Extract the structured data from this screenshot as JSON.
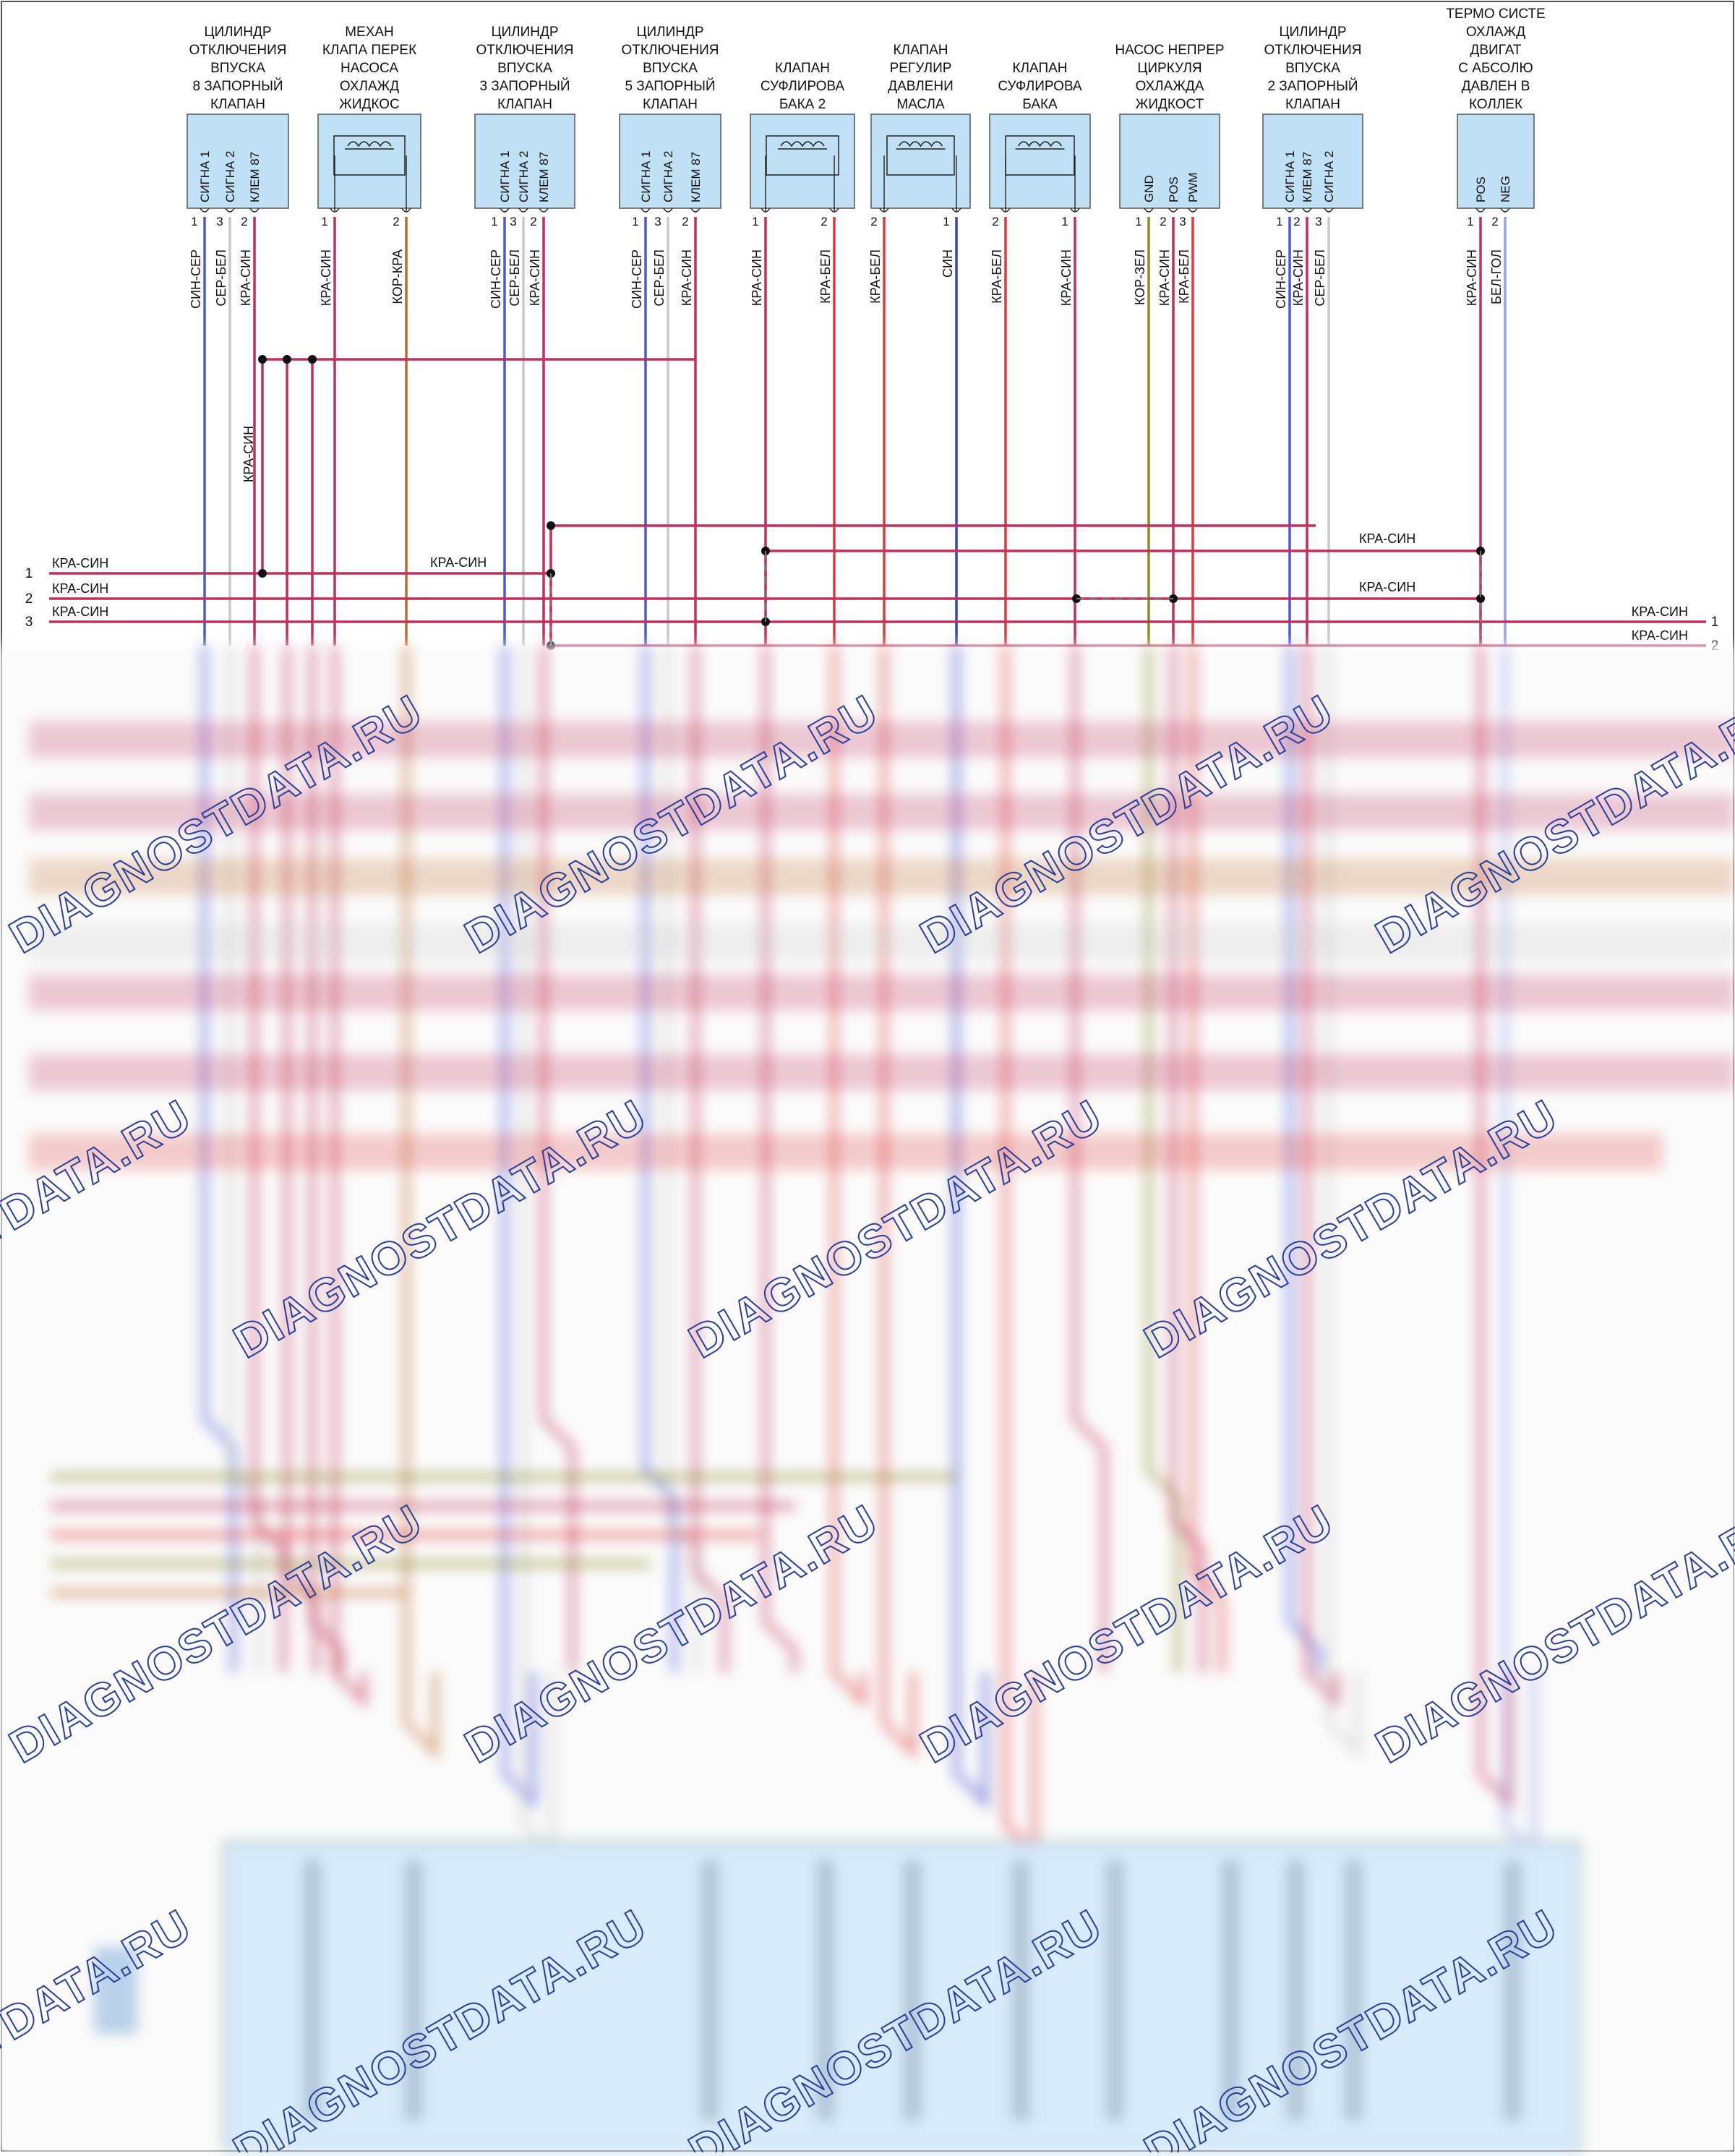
{
  "colors": {
    "red_blue": "#c0305a",
    "blue_grey": "#4a58d8",
    "grey_white": "#c8c8c8",
    "brown_red": "#c06a2a",
    "red_white": "#e03a3a",
    "blue": "#3a44c8",
    "brown_green": "#8a8a2a",
    "white_cyan": "#9aa0e6",
    "connector_fill": "#bfe0f5",
    "watermark": "#2a3e99",
    "module_fill": "#d6ebfb"
  },
  "components": [
    {
      "id": "c1",
      "title": [
        "ЦИЛИНДР",
        "ОТКЛЮЧЕНИЯ",
        "ВПУСКА",
        "8 ЗАПОРНЫЙ",
        "КЛАПАН"
      ],
      "type": "signal",
      "pins": [
        {
          "num": "1",
          "name": "СИГНА 1"
        },
        {
          "num": "3",
          "name": "СИГНА 2"
        },
        {
          "num": "2",
          "name": "КЛЕМ 87"
        }
      ]
    },
    {
      "id": "c2",
      "title": [
        "МЕХАН",
        "КЛАПА ПЕРЕК",
        "НАСОСА",
        "ОХЛАЖД",
        "ЖИДКОС"
      ],
      "type": "coil",
      "pins": [
        {
          "num": "1",
          "name": ""
        },
        {
          "num": "2",
          "name": ""
        }
      ]
    },
    {
      "id": "c3",
      "title": [
        "ЦИЛИНДР",
        "ОТКЛЮЧЕНИЯ",
        "ВПУСКА",
        "3 ЗАПОРНЫЙ",
        "КЛАПАН"
      ],
      "type": "signal",
      "pins": [
        {
          "num": "1",
          "name": "СИГНА 1"
        },
        {
          "num": "3",
          "name": "СИГНА 2"
        },
        {
          "num": "2",
          "name": "КЛЕМ 87"
        }
      ]
    },
    {
      "id": "c4",
      "title": [
        "ЦИЛИНДР",
        "ОТКЛЮЧЕНИЯ",
        "ВПУСКА",
        "5 ЗАПОРНЫЙ",
        "КЛАПАН"
      ],
      "type": "signal",
      "pins": [
        {
          "num": "1",
          "name": "СИГНА 1"
        },
        {
          "num": "3",
          "name": "СИГНА 2"
        },
        {
          "num": "2",
          "name": "КЛЕМ 87"
        }
      ]
    },
    {
      "id": "c5",
      "title": [
        "КЛАПАН",
        "СУФЛИРОВА",
        "БАКА 2"
      ],
      "type": "coil",
      "pins": [
        {
          "num": "1",
          "name": ""
        },
        {
          "num": "2",
          "name": ""
        }
      ]
    },
    {
      "id": "c6",
      "title": [
        "КЛАПАН",
        "РЕГУЛИР",
        "ДАВЛЕНИ",
        "МАСЛА"
      ],
      "type": "coil",
      "pins": [
        {
          "num": "2",
          "name": ""
        },
        {
          "num": "1",
          "name": ""
        }
      ]
    },
    {
      "id": "c7",
      "title": [
        "КЛАПАН",
        "СУФЛИРОВА",
        "БАКА"
      ],
      "type": "coil",
      "pins": [
        {
          "num": "2",
          "name": ""
        },
        {
          "num": "1",
          "name": ""
        }
      ]
    },
    {
      "id": "c8",
      "title": [
        "НАСОС НЕПРЕР",
        "ЦИРКУЛЯ",
        "ОХЛАЖДА",
        "ЖИДКОСТ"
      ],
      "type": "signal",
      "pins": [
        {
          "num": "1",
          "name": "GND"
        },
        {
          "num": "2",
          "name": "POS"
        },
        {
          "num": "3",
          "name": "PWM"
        }
      ]
    },
    {
      "id": "c9",
      "title": [
        "ЦИЛИНДР",
        "ОТКЛЮЧЕНИЯ",
        "ВПУСКА",
        "2 ЗАПОРНЫЙ",
        "КЛАПАН"
      ],
      "type": "signal",
      "pins": [
        {
          "num": "1",
          "name": "СИГНА 1"
        },
        {
          "num": "2",
          "name": "КЛЕМ 87"
        },
        {
          "num": "3",
          "name": "СИГНА 2"
        }
      ]
    },
    {
      "id": "c10",
      "title": [
        "ТЕРМО СИСТЕ",
        "ОХЛАЖД",
        "ДВИГАТ",
        "С АБСОЛЮ",
        "ДАВЛЕН В",
        "КОЛЛЕК"
      ],
      "type": "signal",
      "pins": [
        {
          "num": "1",
          "name": "POS"
        },
        {
          "num": "2",
          "name": "NEG"
        }
      ]
    }
  ],
  "wires": {
    "c1": [
      "СИН-СЕР",
      "СЕР-БЕЛ",
      "КРА-СИН"
    ],
    "c2": [
      "КРА-СИН",
      "КОР-КРА"
    ],
    "c3": [
      "СИН-СЕР",
      "СЕР-БЕЛ",
      "КРА-СИН"
    ],
    "c4": [
      "СИН-СЕР",
      "СЕР-БЕЛ",
      "КРА-СИН"
    ],
    "c5": [
      "КРА-СИН",
      "КРА-БЕЛ"
    ],
    "c6": [
      "КРА-БЕЛ",
      "СИН"
    ],
    "c7": [
      "КРА-БЕЛ",
      "КРА-СИН"
    ],
    "c8": [
      "КОР-ЗЕЛ",
      "КРА-СИН",
      "КРА-БЕЛ"
    ],
    "c9": [
      "СИН-СЕР",
      "КРА-СИН",
      "СЕР-БЕЛ"
    ],
    "c10": [
      "КРА-СИН",
      "БЕЛ-ГОЛ"
    ]
  },
  "extra_wire_label": "КРА-СИН",
  "bus": {
    "left": [
      {
        "num": "1",
        "label": "КРА-СИН"
      },
      {
        "num": "2",
        "label": "КРА-СИН"
      },
      {
        "num": "3",
        "label": "КРА-СИН"
      }
    ],
    "right": [
      {
        "num": "1",
        "label": "КРА-СИН"
      },
      {
        "num": "2",
        "label": "КРА-СИН"
      }
    ],
    "mid_labels": [
      "КРА-СИН",
      "КРА-СИН",
      "КРА-СИН"
    ]
  },
  "watermark": "DIAGNOSTDATA.RU"
}
